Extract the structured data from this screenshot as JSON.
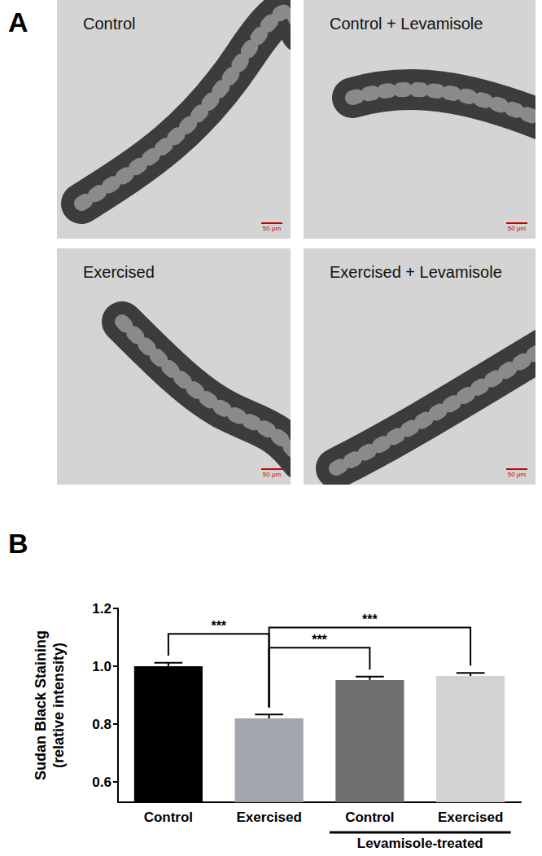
{
  "figure": {
    "panels": [
      {
        "label": "A",
        "images": [
          {
            "caption": "Control",
            "scale_bar": "50 μm"
          },
          {
            "caption": "Control + Levamisole",
            "scale_bar": "50 μm"
          },
          {
            "caption": "Exercised",
            "scale_bar": "50 μm"
          },
          {
            "caption": "Exercised + Levamisole",
            "scale_bar": "50 μm"
          }
        ]
      },
      {
        "label": "B"
      }
    ]
  },
  "chart_data": {
    "type": "bar",
    "categories": [
      "Control",
      "Exercised",
      "Control",
      "Exercised"
    ],
    "values": [
      1.0,
      0.82,
      0.952,
      0.966
    ],
    "errors": [
      0.012,
      0.013,
      0.012,
      0.011
    ],
    "colors": [
      "#000000",
      "#a3a6ad",
      "#707070",
      "#d0d2d4"
    ],
    "y_label": "Sudan Black Staining\n(relative intensity)",
    "ylim": [
      0.53,
      1.2
    ],
    "yticks": [
      0.6,
      0.8,
      {
        "value": 1,
        "label": "1.0"
      },
      1.2
    ],
    "category_groups": [
      {
        "label": "Levamisole-treated",
        "from": 2,
        "to": 3
      }
    ],
    "annotations": [
      {
        "from": 0,
        "to": 1,
        "text": "***"
      },
      {
        "from": 1,
        "to": 2,
        "text": "***"
      },
      {
        "from": 1,
        "to": 3,
        "text": "***"
      }
    ],
    "grid": false
  }
}
